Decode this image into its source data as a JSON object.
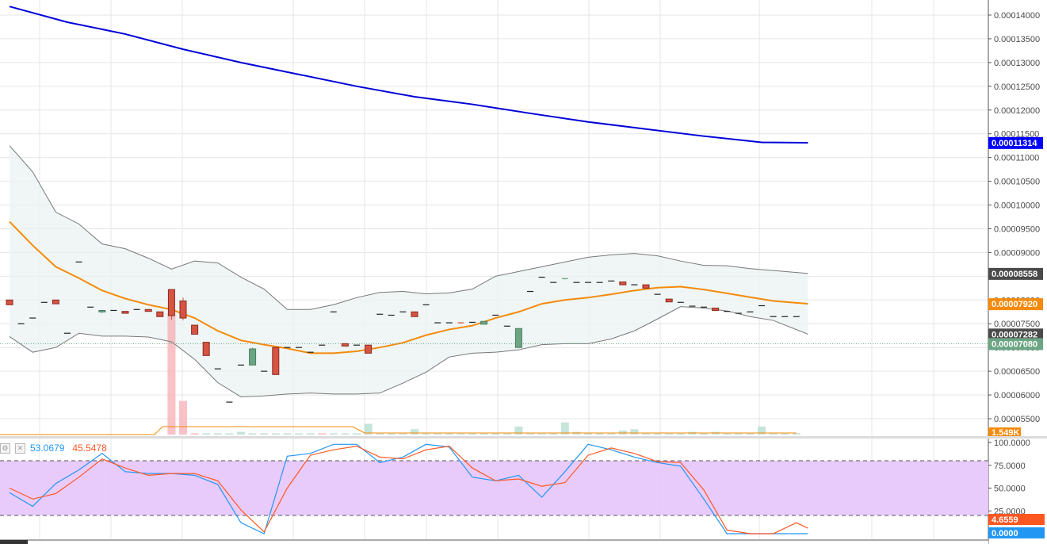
{
  "chart_data": [
    {
      "type": "candlestick",
      "title": "",
      "yticks": [
        "0.00014000",
        "0.00013500",
        "0.00013000",
        "0.00012500",
        "0.00012000",
        "0.00011500",
        "0.00011000",
        "0.00010500",
        "0.00010000",
        "0.00009500",
        "0.00009000",
        "0.00008500",
        "0.00008000",
        "0.00007500",
        "0.00007000",
        "0.00006500",
        "0.00006000",
        "0.00005500"
      ],
      "ylim": [
        5.35e-05,
        0.0001415
      ],
      "grid": true,
      "ohlc": [
        [
          8e-05,
          8e-05,
          7.9e-05,
          7.9e-05
        ],
        [
          7.5e-05,
          7.5e-05,
          7.5e-05,
          7.5e-05
        ],
        [
          7.62e-05,
          7.62e-05,
          7.62e-05,
          7.62e-05
        ],
        [
          7.95e-05,
          7.95e-05,
          7.95e-05,
          7.95e-05
        ],
        [
          8e-05,
          8e-05,
          7.92e-05,
          7.92e-05
        ],
        [
          7.3e-05,
          7.3e-05,
          7.3e-05,
          7.3e-05
        ],
        [
          8.8e-05,
          8.8e-05,
          8.8e-05,
          8.8e-05
        ],
        [
          7.85e-05,
          7.85e-05,
          7.85e-05,
          7.85e-05
        ],
        [
          7.75e-05,
          7.78e-05,
          7.72e-05,
          7.78e-05
        ],
        [
          7.78e-05,
          7.78e-05,
          7.78e-05,
          7.78e-05
        ],
        [
          7.76e-05,
          7.76e-05,
          7.72e-05,
          7.72e-05
        ],
        [
          7.8e-05,
          7.8e-05,
          7.8e-05,
          7.8e-05
        ],
        [
          7.8e-05,
          7.8e-05,
          7.76e-05,
          7.76e-05
        ],
        [
          7.75e-05,
          7.75e-05,
          7.65e-05,
          7.65e-05
        ],
        [
          8.22e-05,
          8.22e-05,
          7.58e-05,
          7.67e-05
        ],
        [
          7.98e-05,
          8.05e-05,
          7.57e-05,
          7.62e-05
        ],
        [
          7.47e-05,
          7.47e-05,
          7.28e-05,
          7.28e-05
        ],
        [
          7.11e-05,
          7.11e-05,
          6.83e-05,
          6.83e-05
        ],
        [
          6.55e-05,
          6.55e-05,
          6.55e-05,
          6.55e-05
        ],
        [
          5.85e-05,
          5.85e-05,
          5.85e-05,
          5.85e-05
        ],
        [
          6.63e-05,
          6.63e-05,
          6.63e-05,
          6.63e-05
        ],
        [
          6.63e-05,
          7e-05,
          6.63e-05,
          6.97e-05
        ],
        [
          6.5e-05,
          6.5e-05,
          6.5e-05,
          6.5e-05
        ],
        [
          7e-05,
          7e-05,
          6.43e-05,
          6.43e-05
        ],
        [
          7e-05,
          7e-05,
          7e-05,
          7e-05
        ],
        [
          7e-05,
          7e-05,
          7e-05,
          7e-05
        ],
        [
          6.9e-05,
          6.9e-05,
          6.9e-05,
          6.9e-05
        ],
        [
          7.05e-05,
          7.05e-05,
          7.05e-05,
          7.05e-05
        ],
        [
          7.75e-05,
          7.75e-05,
          7.75e-05,
          7.75e-05
        ],
        [
          7.08e-05,
          7.08e-05,
          7.03e-05,
          7.03e-05
        ],
        [
          7.05e-05,
          7.05e-05,
          7.05e-05,
          7.05e-05
        ],
        [
          7.05e-05,
          7.05e-05,
          6.88e-05,
          6.88e-05
        ],
        [
          7.7e-05,
          7.7e-05,
          7.7e-05,
          7.7e-05
        ],
        [
          7.68e-05,
          7.68e-05,
          7.68e-05,
          7.68e-05
        ],
        [
          7.75e-05,
          7.75e-05,
          7.75e-05,
          7.75e-05
        ],
        [
          7.75e-05,
          7.75e-05,
          7.65e-05,
          7.65e-05
        ],
        [
          7.9e-05,
          7.9e-05,
          7.9e-05,
          7.9e-05
        ],
        [
          7.52e-05,
          7.52e-05,
          7.52e-05,
          7.52e-05
        ],
        [
          7.52e-05,
          7.52e-05,
          7.52e-05,
          7.52e-05
        ],
        [
          7.52e-05,
          7.52e-05,
          7.5e-05,
          7.5e-05
        ],
        [
          7.53e-05,
          7.53e-05,
          7.53e-05,
          7.53e-05
        ],
        [
          7.49e-05,
          7.55e-05,
          7.49e-05,
          7.55e-05
        ],
        [
          7.68e-05,
          7.68e-05,
          7.68e-05,
          7.68e-05
        ],
        [
          7.45e-05,
          7.45e-05,
          7.45e-05,
          7.45e-05
        ],
        [
          7e-05,
          7.4e-05,
          7e-05,
          7.4e-05
        ],
        [
          8.18e-05,
          8.18e-05,
          8.18e-05,
          8.18e-05
        ],
        [
          8.48e-05,
          8.48e-05,
          8.48e-05,
          8.48e-05
        ],
        [
          8.37e-05,
          8.37e-05,
          8.37e-05,
          8.37e-05
        ],
        [
          8.43e-05,
          8.45e-05,
          8.43e-05,
          8.45e-05
        ],
        [
          8.37e-05,
          8.37e-05,
          8.37e-05,
          8.37e-05
        ],
        [
          8.37e-05,
          8.37e-05,
          8.37e-05,
          8.37e-05
        ],
        [
          8.37e-05,
          8.37e-05,
          8.37e-05,
          8.37e-05
        ],
        [
          8.4e-05,
          8.4e-05,
          8.4e-05,
          8.4e-05
        ],
        [
          8.38e-05,
          8.38e-05,
          8.32e-05,
          8.32e-05
        ],
        [
          8.32e-05,
          8.32e-05,
          8.32e-05,
          8.32e-05
        ],
        [
          8.32e-05,
          8.32e-05,
          8.25e-05,
          8.25e-05
        ],
        [
          8.12e-05,
          8.12e-05,
          8.12e-05,
          8.12e-05
        ],
        [
          8.02e-05,
          8.02e-05,
          7.96e-05,
          7.96e-05
        ],
        [
          7.95e-05,
          7.95e-05,
          7.95e-05,
          7.95e-05
        ],
        [
          7.87e-05,
          7.87e-05,
          7.87e-05,
          7.87e-05
        ],
        [
          7.85e-05,
          7.85e-05,
          7.85e-05,
          7.85e-05
        ],
        [
          7.83e-05,
          7.83e-05,
          7.78e-05,
          7.78e-05
        ],
        [
          7.76e-05,
          7.76e-05,
          7.76e-05,
          7.76e-05
        ],
        [
          7.72e-05,
          7.72e-05,
          7.72e-05,
          7.72e-05
        ],
        [
          7.75e-05,
          7.75e-05,
          7.75e-05,
          7.75e-05
        ],
        [
          7.88e-05,
          7.88e-05,
          7.88e-05,
          7.88e-05
        ],
        [
          7.65e-05,
          7.65e-05,
          7.65e-05,
          7.65e-05
        ],
        [
          7.65e-05,
          7.65e-05,
          7.65e-05,
          7.65e-05
        ],
        [
          7.65e-05,
          7.65e-05,
          7.65e-05,
          7.65e-05
        ]
      ],
      "volume": [
        0,
        0,
        0,
        0,
        0,
        0,
        0,
        0,
        0,
        0,
        0,
        0,
        0,
        0,
        9,
        2.5,
        0.1,
        0.1,
        0.1,
        0.1,
        0.2,
        0.1,
        0.1,
        0.1,
        0.1,
        0.1,
        0.1,
        0.1,
        0.1,
        0.1,
        0.1,
        0.8,
        0.1,
        0.1,
        0.1,
        0.4,
        0.1,
        0.1,
        0.1,
        0.1,
        0.1,
        0.1,
        0.1,
        0.1,
        0.6,
        0.1,
        0.1,
        0.1,
        0.9,
        0.2,
        0.1,
        0.1,
        0.1,
        0.3,
        0.4,
        0.1,
        0.1,
        0.1,
        0.1,
        0.2,
        0.1,
        0.2,
        0.1,
        0.1,
        0.1,
        0.6,
        0.1,
        0.1,
        0.1
      ],
      "volume_down": [
        14,
        15,
        16,
        27
      ],
      "series": [
        {
          "name": "",
          "color": "#0000d8",
          "x": [
            0,
            5,
            10,
            15,
            20,
            25,
            30,
            35,
            40,
            45,
            50,
            55,
            60,
            65,
            69
          ],
          "values": [
            0.0001418,
            0.0001385,
            0.000136,
            0.0001328,
            0.00013,
            0.0001275,
            0.000125,
            0.0001228,
            0.0001212,
            0.0001193,
            0.0001175,
            0.000116,
            0.0001145,
            0.0001132,
            0.0001131
          ]
        },
        {
          "name": "",
          "color": "#f58a0b",
          "x": [
            0,
            2,
            4,
            6,
            8,
            10,
            12,
            14,
            16,
            18,
            20,
            22,
            24,
            26,
            28,
            30,
            32,
            34,
            36,
            38,
            40,
            42,
            44,
            46,
            48,
            50,
            52,
            54,
            56,
            58,
            60,
            62,
            64,
            66,
            69
          ],
          "values": [
            9.65e-05,
            9.15e-05,
            8.7e-05,
            8.46e-05,
            8.2e-05,
            8.03e-05,
            7.9e-05,
            7.8e-05,
            7.62e-05,
            7.35e-05,
            7.15e-05,
            7.06e-05,
            6.98e-05,
            6.88e-05,
            6.88e-05,
            6.92e-05,
            7e-05,
            7.1e-05,
            7.26e-05,
            7.38e-05,
            7.46e-05,
            7.62e-05,
            7.75e-05,
            7.92e-05,
            8e-05,
            8.05e-05,
            8.12e-05,
            8.2e-05,
            8.26e-05,
            8.28e-05,
            8.22e-05,
            8.14e-05,
            8.06e-05,
            7.98e-05,
            7.92e-05
          ]
        },
        {
          "name": "",
          "color": "#787878",
          "x": [
            0,
            2,
            4,
            6,
            8,
            10,
            12,
            14,
            16,
            18,
            20,
            22,
            24,
            26,
            28,
            30,
            32,
            34,
            36,
            38,
            40,
            42,
            44,
            46,
            48,
            50,
            52,
            54,
            56,
            58,
            60,
            62,
            64,
            66,
            69
          ],
          "values": [
            0.0001125,
            0.000107,
            9.85e-05,
            9.6e-05,
            9.18e-05,
            9.08e-05,
            8.88e-05,
            8.65e-05,
            8.82e-05,
            8.78e-05,
            8.48e-05,
            8.23e-05,
            7.8e-05,
            7.8e-05,
            7.9e-05,
            8.05e-05,
            8.16e-05,
            8.18e-05,
            8.13e-05,
            8.15e-05,
            8.23e-05,
            8.5e-05,
            8.6e-05,
            8.7e-05,
            8.8e-05,
            8.9e-05,
            8.95e-05,
            8.98e-05,
            8.93e-05,
            8.82e-05,
            8.73e-05,
            8.72e-05,
            8.66e-05,
            8.62e-05,
            8.56e-05
          ]
        },
        {
          "name": "",
          "color": "#787878",
          "x": [
            0,
            2,
            4,
            6,
            8,
            10,
            12,
            14,
            16,
            18,
            20,
            22,
            24,
            26,
            28,
            30,
            32,
            34,
            36,
            38,
            40,
            42,
            44,
            46,
            48,
            50,
            52,
            54,
            56,
            58,
            60,
            62,
            64,
            66,
            69
          ],
          "values": [
            7.23e-05,
            6.9e-05,
            7e-05,
            7.3e-05,
            7.24e-05,
            7.24e-05,
            7.22e-05,
            7.12e-05,
            6.75e-05,
            6.26e-05,
            5.96e-05,
            5.98e-05,
            6.02e-05,
            6.04e-05,
            6.02e-05,
            6.02e-05,
            6.04e-05,
            6.25e-05,
            6.48e-05,
            6.8e-05,
            6.88e-05,
            6.9e-05,
            6.95e-05,
            7.06e-05,
            7.08e-05,
            7.08e-05,
            7.18e-05,
            7.35e-05,
            7.6e-05,
            7.86e-05,
            7.83e-05,
            7.77e-05,
            7.65e-05,
            7.57e-05,
            7.28e-05
          ]
        }
      ],
      "price_labels": [
        {
          "value": "0.00011314",
          "color": "#0000ff",
          "y": 0.00011314
        },
        {
          "value": "0.00008558",
          "color": "#4a4a4a",
          "y": 8.558e-05
        },
        {
          "value": "0.00007920",
          "color": "#f58a0b",
          "y": 7.92e-05
        },
        {
          "value": "0.00007282",
          "color": "#4a4a4a",
          "y": 7.282e-05
        },
        {
          "value": "0.00007080",
          "color": "#6ba583",
          "y": 7.08e-05
        }
      ],
      "volume_label": {
        "value": "1.549K",
        "color": "#f58a0b"
      }
    },
    {
      "type": "line",
      "title": "",
      "yticks": [
        "100.0000",
        "75.0000",
        "50.0000",
        "25.0000"
      ],
      "ylim": [
        0,
        100
      ],
      "band": [
        20,
        80
      ],
      "x": [
        0,
        2,
        4,
        6,
        8,
        10,
        12,
        14,
        16,
        18,
        20,
        22,
        24,
        26,
        28,
        30,
        32,
        34,
        36,
        38,
        40,
        42,
        44,
        46,
        48,
        50,
        52,
        54,
        56,
        58,
        60,
        62,
        64,
        66,
        68,
        69
      ],
      "series": [
        {
          "name": "",
          "color": "#2196f3",
          "values": [
            45,
            30,
            55,
            70,
            88,
            68,
            66,
            66,
            64,
            54,
            12,
            0,
            85,
            88,
            98,
            98,
            78,
            84,
            98,
            95,
            62,
            58,
            64,
            40,
            68,
            98,
            92,
            84,
            78,
            74,
            38,
            0,
            0,
            0,
            0,
            0
          ],
          "legend": "53.0679",
          "last": "0.0000"
        },
        {
          "name": "",
          "color": "#ff5722",
          "values": [
            50,
            38,
            44,
            62,
            82,
            72,
            64,
            66,
            66,
            58,
            26,
            2,
            50,
            86,
            92,
            96,
            84,
            82,
            92,
            96,
            72,
            58,
            60,
            52,
            56,
            86,
            94,
            88,
            79,
            78,
            48,
            4,
            0,
            0,
            12,
            6
          ],
          "legend": "45.5478",
          "last": "4.6559"
        }
      ]
    }
  ]
}
